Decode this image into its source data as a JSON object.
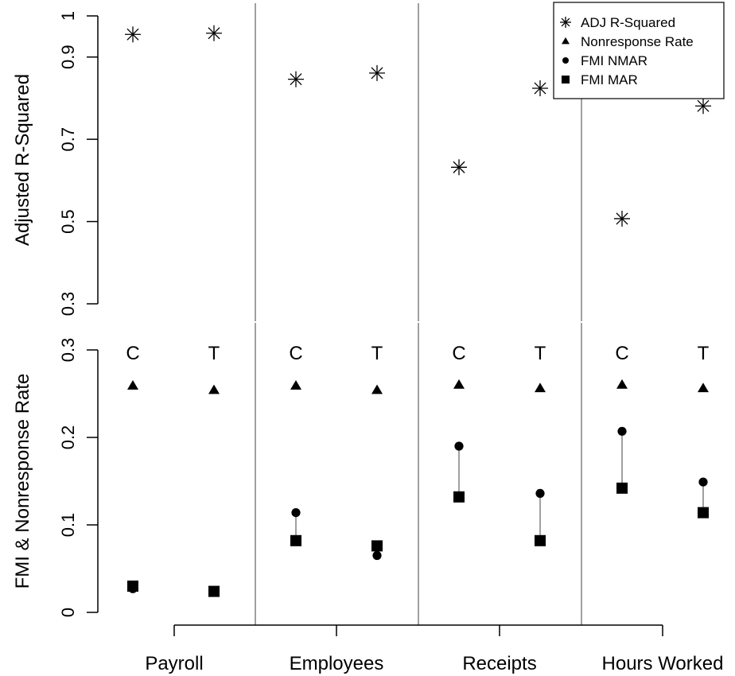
{
  "chart_data": {
    "type": "scatter",
    "groups": [
      "Payroll",
      "Employees",
      "Receipts",
      "Hours Worked"
    ],
    "subgroups": [
      "C",
      "T"
    ],
    "panels": [
      {
        "id": "top",
        "ylabel": "Adjusted R-Squared",
        "ylim": [
          0.3,
          1.0
        ],
        "yticks": [
          0.3,
          0.5,
          0.7,
          0.9,
          1
        ],
        "series": [
          {
            "name": "ADJ R-Squared",
            "marker": "asterisk",
            "values": [
              0.955,
              0.958,
              0.846,
              0.861,
              0.632,
              0.824,
              0.507,
              0.781
            ]
          }
        ]
      },
      {
        "id": "bottom",
        "ylabel": "FMI & Nonresponse Rate",
        "ylim": [
          0,
          0.3
        ],
        "yticks": [
          0,
          0.1,
          0.2,
          0.3
        ],
        "series": [
          {
            "name": "Nonresponse Rate",
            "marker": "triangle",
            "values": [
              0.259,
              0.254,
              0.259,
              0.254,
              0.26,
              0.256,
              0.26,
              0.256
            ]
          },
          {
            "name": "FMI NMAR",
            "marker": "circle",
            "values": [
              0.027,
              0.024,
              0.114,
              0.065,
              0.19,
              0.136,
              0.207,
              0.149
            ]
          },
          {
            "name": "FMI MAR",
            "marker": "square",
            "values": [
              0.03,
              0.024,
              0.082,
              0.076,
              0.132,
              0.082,
              0.142,
              0.114
            ]
          }
        ]
      }
    ],
    "legend": {
      "position": "top-right",
      "entries": [
        {
          "label": "ADJ R-Squared",
          "marker": "asterisk"
        },
        {
          "label": "Nonresponse Rate",
          "marker": "triangle"
        },
        {
          "label": "FMI NMAR",
          "marker": "circle"
        },
        {
          "label": "FMI MAR",
          "marker": "square"
        }
      ]
    },
    "colors": {
      "marker": "#000000",
      "axis": "#000000",
      "separator": "#808080",
      "connector": "#a0a0a0"
    }
  }
}
